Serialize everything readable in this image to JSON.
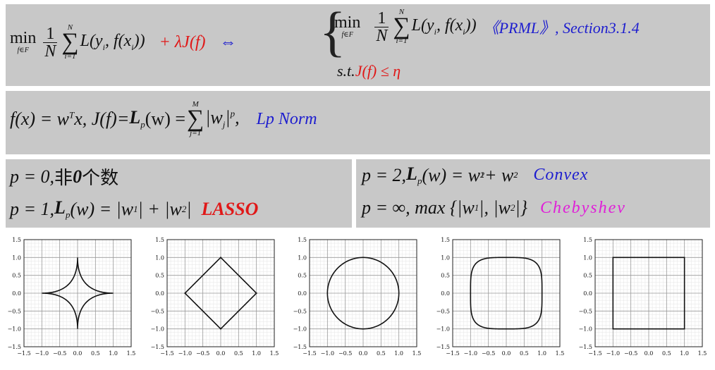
{
  "row1": {
    "min_label": "min",
    "min_sub": "f∈F",
    "frac_num": "1",
    "frac_den": "N",
    "sum_top": "N",
    "sum_bot": "i=1",
    "loss": "L(y",
    "loss_i": "i",
    "loss_mid": ", f(x",
    "loss_end": "))",
    "penalty": "+ λJ(f)",
    "equiv": "⇔",
    "st_prefix": "s.t.",
    "constraint": "J(f) ≤ η",
    "reference": "《PRML》, Section3.1.4"
  },
  "row2": {
    "lhs": "f(x) = w",
    "sup_T": "T",
    "mid": "x, J(f)=",
    "norm_L": "L",
    "norm_sub": "p",
    "norm_arg": "(w) =",
    "sum_top": "M",
    "sum_bot": "j=1",
    "abs": "|w",
    "abs_sub": "j",
    "abs_end": "|",
    "abs_pow": "p",
    "tail": ",",
    "note": "Lp Norm"
  },
  "row3": {
    "left_line1_pre": "p = 0,",
    "left_line1_cn1": "非",
    "left_line1_bold": "0",
    "left_line1_cn2": "个数",
    "left_line2_pre": "p = 1,",
    "left_line2_eq": "(w) = |w",
    "left_line2_mid": "| + |w",
    "left_line2_end": "|",
    "left_line2_label": "LASSO",
    "right_line1_pre": "p = 2,",
    "right_line1_eq": "(w) = w",
    "right_line1_plus": " + w",
    "right_line1_label": "Convex",
    "right_line2_pre": "p = ∞, max {|w",
    "right_line2_mid": "|, |w",
    "right_line2_end": "|}",
    "right_line2_label": "Chebyshev",
    "sub1": "1",
    "sub2": "2",
    "sq": "2"
  },
  "plots": {
    "tick_labels": [
      "−1.5",
      "−1.0",
      "−0.5",
      "0.0",
      "0.5",
      "1.0",
      "1.5"
    ],
    "p_values": [
      0.5,
      1,
      2,
      4,
      "inf"
    ]
  }
}
